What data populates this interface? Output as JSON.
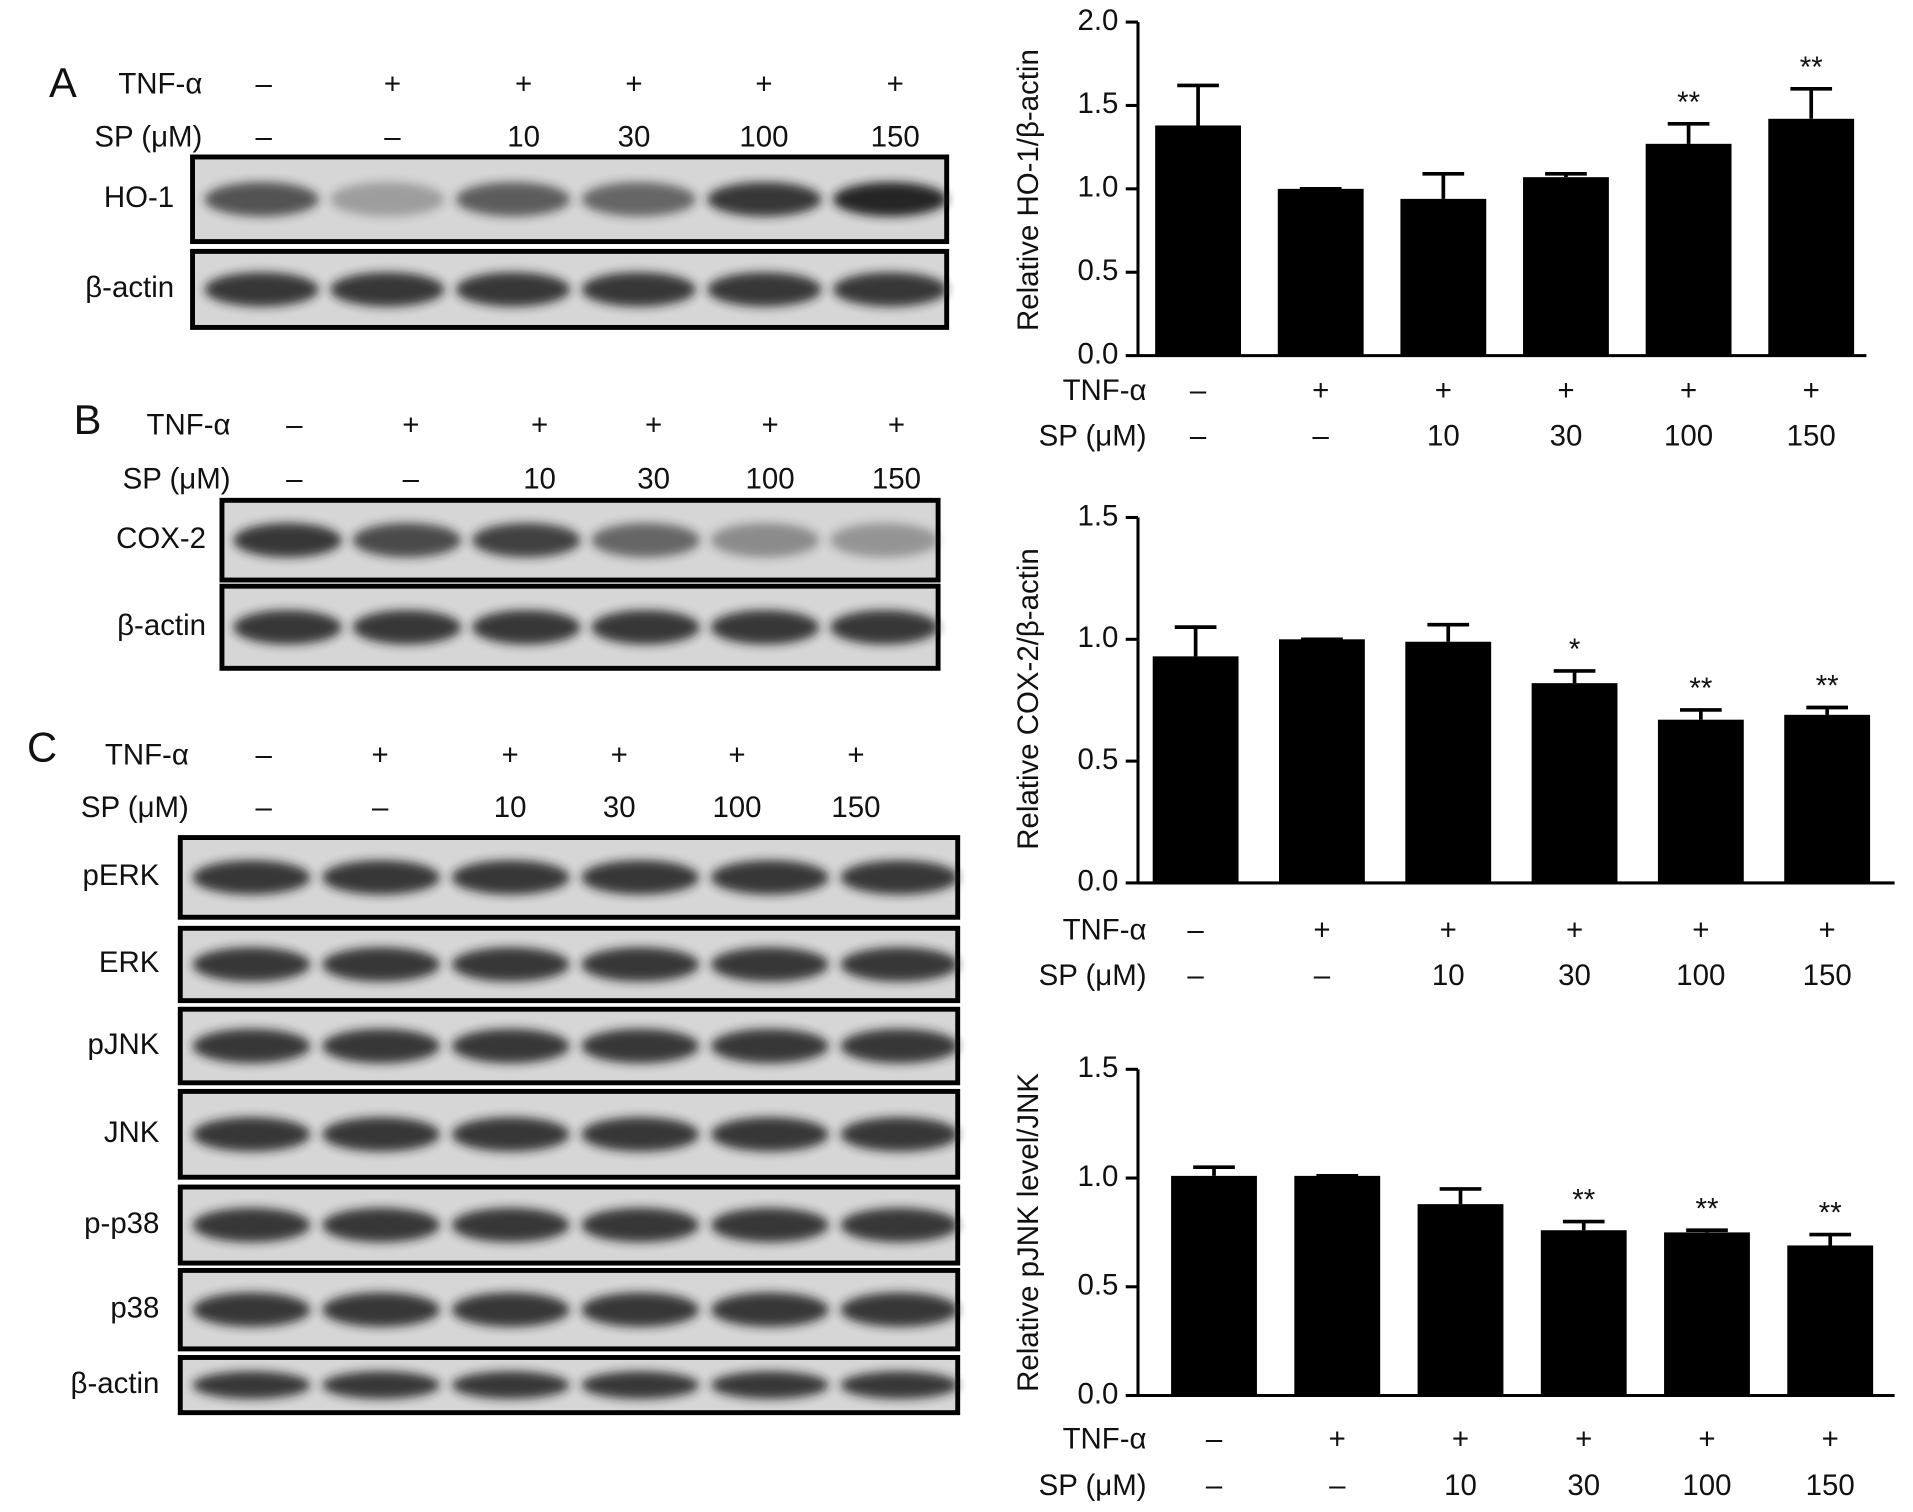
{
  "blots": [
    {
      "panel": "A",
      "row_labels": [
        "TNF-α",
        "SP (μM)"
      ],
      "rows": [
        [
          "–",
          "+",
          "+",
          "+",
          "+",
          "+"
        ],
        [
          "–",
          "–",
          "10",
          "30",
          "100",
          "150"
        ]
      ],
      "bands": [
        "HO-1",
        "β-actin"
      ]
    },
    {
      "panel": "B",
      "row_labels": [
        "TNF-α",
        "SP (μM)"
      ],
      "rows": [
        [
          "–",
          "+",
          "+",
          "+",
          "+",
          "+"
        ],
        [
          "–",
          "–",
          "10",
          "30",
          "100",
          "150"
        ]
      ],
      "bands": [
        "COX-2",
        "β-actin"
      ]
    },
    {
      "panel": "C",
      "row_labels": [
        "TNF-α",
        "SP (μM)"
      ],
      "rows": [
        [
          "–",
          "+",
          "+",
          "+",
          "+",
          "+"
        ],
        [
          "–",
          "–",
          "10",
          "30",
          "100",
          "150"
        ]
      ],
      "bands": [
        "pERK",
        "ERK",
        "pJNK",
        "JNK",
        "p-p38",
        "p38",
        "β-actin"
      ]
    }
  ],
  "chart_data": [
    {
      "type": "bar",
      "ylabel": "Relative HO-1/β-actin",
      "row_labels": [
        "TNF-α",
        "SP (μM)"
      ],
      "rows": [
        [
          "–",
          "+",
          "+",
          "+",
          "+",
          "+"
        ],
        [
          "–",
          "–",
          "10",
          "30",
          "100",
          "150"
        ]
      ],
      "values": [
        1.38,
        1.0,
        0.94,
        1.07,
        1.27,
        1.42
      ],
      "errors": [
        0.24,
        0,
        0.15,
        0.02,
        0.12,
        0.18
      ],
      "annotations": [
        null,
        null,
        null,
        null,
        "**",
        "**"
      ],
      "color": "#000000",
      "ylim": [
        0,
        2
      ],
      "yticks": [
        {
          "value": 0,
          "label": "0.0"
        },
        0.5,
        {
          "value": 1,
          "label": "1.0"
        },
        1.5,
        {
          "value": 2,
          "label": "2.0"
        }
      ]
    },
    {
      "type": "bar",
      "ylabel": "Relative COX-2/β-actin",
      "row_labels": [
        "TNF-α",
        "SP (μM)"
      ],
      "rows": [
        [
          "–",
          "+",
          "+",
          "+",
          "+",
          "+"
        ],
        [
          "–",
          "–",
          "10",
          "30",
          "100",
          "150"
        ]
      ],
      "values": [
        0.93,
        1.0,
        0.99,
        0.82,
        0.67,
        0.69
      ],
      "errors": [
        0.12,
        0,
        0.07,
        0.05,
        0.04,
        0.03
      ],
      "annotations": [
        null,
        null,
        null,
        "*",
        "**",
        "**"
      ],
      "color": "#000000",
      "ylim": [
        0,
        1.5
      ],
      "yticks": [
        {
          "value": 0,
          "label": "0.0"
        },
        0.5,
        {
          "value": 1,
          "label": "1.0"
        },
        1.5
      ]
    },
    {
      "type": "bar",
      "ylabel": "Relative pJNK level/JNK",
      "row_labels": [
        "TNF-α",
        "SP (μM)"
      ],
      "rows": [
        [
          "–",
          "+",
          "+",
          "+",
          "+",
          "+"
        ],
        [
          "–",
          "–",
          "10",
          "30",
          "100",
          "150"
        ]
      ],
      "values": [
        1.01,
        1.01,
        0.88,
        0.76,
        0.75,
        0.69
      ],
      "errors": [
        0.04,
        0,
        0.07,
        0.04,
        0.01,
        0.05
      ],
      "annotations": [
        null,
        null,
        null,
        "**",
        "**",
        "**"
      ],
      "color": "#000000",
      "ylim": [
        0,
        1.5
      ],
      "yticks": [
        {
          "value": 0,
          "label": "0.0"
        },
        0.5,
        {
          "value": 1,
          "label": "1.0"
        },
        1.5
      ]
    }
  ]
}
